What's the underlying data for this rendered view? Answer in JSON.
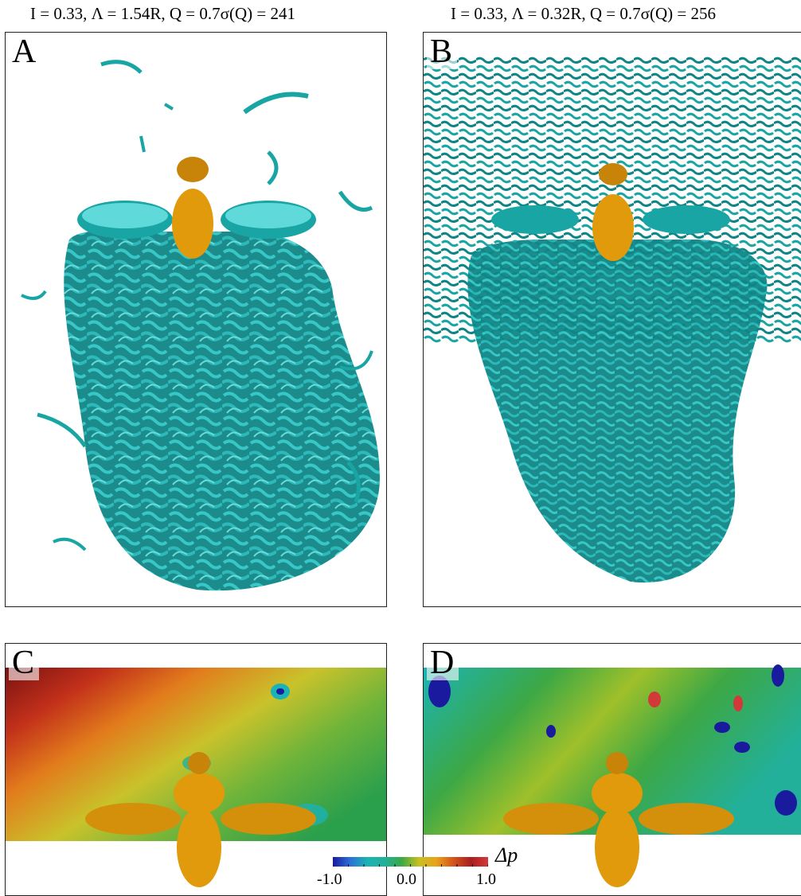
{
  "captions": {
    "left": {
      "prefix": "I = 0.33, Λ = 1.54R, Q = 0.7σ(Q) = 241"
    },
    "right": {
      "prefix": "I = 0.33, Λ = 0.32R, Q = 0.7σ(Q) = 256"
    }
  },
  "panels": {
    "A": {
      "letter": "A"
    },
    "B": {
      "letter": "B"
    },
    "C": {
      "letter": "C"
    },
    "D": {
      "letter": "D"
    }
  },
  "colorbar": {
    "label": "Δp",
    "min_label": "-1.0",
    "mid_label": "0.0",
    "max_label": "1.0",
    "min": -1.0,
    "max": 1.0,
    "colors": [
      "#1a1a9e",
      "#2e6fd6",
      "#1bb3b3",
      "#22b09a",
      "#3da845",
      "#c8c021",
      "#e8a21c",
      "#d2541c",
      "#a81f1f",
      "#d23a3a"
    ]
  },
  "colors": {
    "vortex": "#1aa5a5",
    "vortex_dark": "#0d6f6f",
    "bee": "#e09a0c",
    "bee_dark": "#9a6200"
  }
}
